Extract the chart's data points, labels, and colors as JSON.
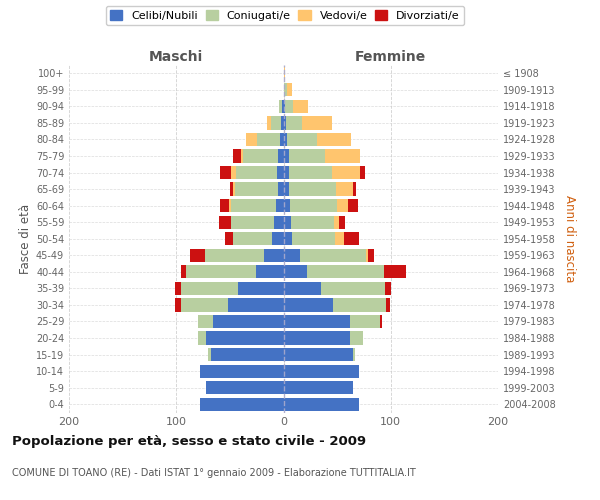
{
  "age_groups": [
    "0-4",
    "5-9",
    "10-14",
    "15-19",
    "20-24",
    "25-29",
    "30-34",
    "35-39",
    "40-44",
    "45-49",
    "50-54",
    "55-59",
    "60-64",
    "65-69",
    "70-74",
    "75-79",
    "80-84",
    "85-89",
    "90-94",
    "95-99",
    "100+"
  ],
  "birth_years": [
    "2004-2008",
    "1999-2003",
    "1994-1998",
    "1989-1993",
    "1984-1988",
    "1979-1983",
    "1974-1978",
    "1969-1973",
    "1964-1968",
    "1959-1963",
    "1954-1958",
    "1949-1953",
    "1944-1948",
    "1939-1943",
    "1934-1938",
    "1929-1933",
    "1924-1928",
    "1919-1923",
    "1914-1918",
    "1909-1913",
    "≤ 1908"
  ],
  "maschi_celibi": [
    78,
    72,
    78,
    68,
    72,
    66,
    52,
    42,
    26,
    18,
    11,
    9,
    7,
    5,
    6,
    5,
    3,
    2,
    1,
    0,
    0
  ],
  "maschi_coniugati": [
    0,
    0,
    0,
    2,
    8,
    14,
    44,
    54,
    65,
    55,
    36,
    40,
    42,
    40,
    38,
    33,
    22,
    10,
    3,
    0,
    0
  ],
  "maschi_vedovi": [
    0,
    0,
    0,
    0,
    0,
    0,
    0,
    0,
    0,
    0,
    0,
    0,
    2,
    2,
    5,
    2,
    10,
    3,
    0,
    0,
    0
  ],
  "maschi_divorziati": [
    0,
    0,
    0,
    0,
    0,
    0,
    5,
    5,
    5,
    14,
    8,
    11,
    8,
    3,
    10,
    7,
    0,
    0,
    0,
    0,
    0
  ],
  "femmine_nubili": [
    70,
    65,
    70,
    65,
    62,
    62,
    46,
    35,
    22,
    15,
    8,
    7,
    6,
    5,
    5,
    5,
    3,
    2,
    1,
    0,
    0
  ],
  "femmine_coniugate": [
    0,
    0,
    0,
    2,
    12,
    28,
    50,
    60,
    72,
    62,
    40,
    40,
    44,
    44,
    40,
    34,
    28,
    15,
    8,
    3,
    0
  ],
  "femmine_vedove": [
    0,
    0,
    0,
    0,
    0,
    0,
    0,
    0,
    0,
    2,
    8,
    5,
    10,
    16,
    26,
    32,
    32,
    28,
    14,
    5,
    1
  ],
  "femmine_divorziate": [
    0,
    0,
    0,
    0,
    0,
    2,
    3,
    5,
    20,
    5,
    14,
    5,
    9,
    3,
    5,
    0,
    0,
    0,
    0,
    0,
    0
  ],
  "color_celibi": "#4472c4",
  "color_coniugati": "#b8cfa0",
  "color_vedovi": "#ffc56e",
  "color_divorziati": "#cc1111",
  "title": "Popolazione per età, sesso e stato civile - 2009",
  "subtitle": "COMUNE DI TOANO (RE) - Dati ISTAT 1° gennaio 2009 - Elaborazione TUTTITALIA.IT",
  "label_maschi": "Maschi",
  "label_femmine": "Femmine",
  "ylabel_left": "Fasce di età",
  "ylabel_right": "Anni di nascita",
  "legend_labels": [
    "Celibi/Nubili",
    "Coniugati/e",
    "Vedovi/e",
    "Divorziati/e"
  ],
  "xlim": 200,
  "bg_color": "#ffffff",
  "grid_color": "#cccccc"
}
